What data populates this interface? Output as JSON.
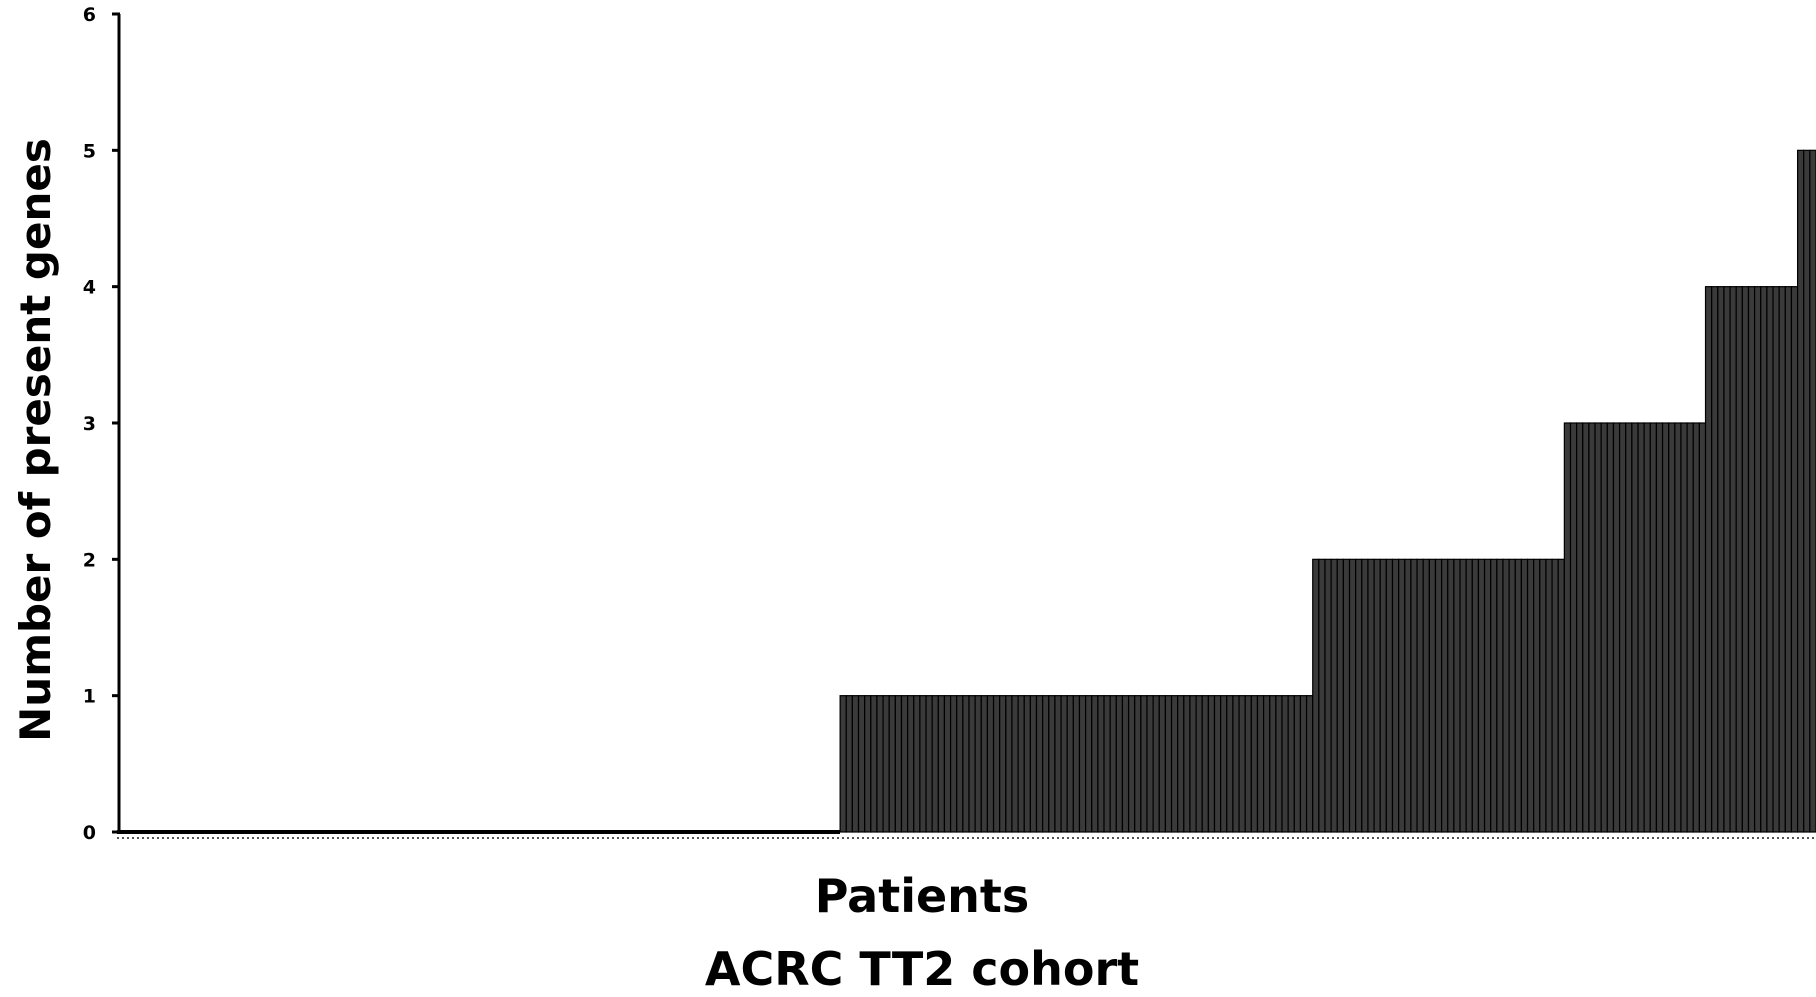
{
  "chart_data": {
    "type": "bar",
    "title": "",
    "xlabel": "Patients",
    "xlabel_line2": "ACRC TT2 cohort",
    "ylabel": "Number of present genes",
    "ylim": [
      0,
      6
    ],
    "yticks": [
      "0",
      "1",
      "2",
      "3",
      "4",
      "5",
      "6"
    ],
    "grid": false,
    "legend": "none",
    "bar_color": "#3a3a3a",
    "bar_edge_color": "#000000",
    "groups": [
      {
        "value": 0,
        "count": 117
      },
      {
        "value": 1,
        "count": 77
      },
      {
        "value": 2,
        "count": 41
      },
      {
        "value": 3,
        "count": 23
      },
      {
        "value": 4,
        "count": 15
      },
      {
        "value": 5,
        "count": 3
      }
    ]
  }
}
